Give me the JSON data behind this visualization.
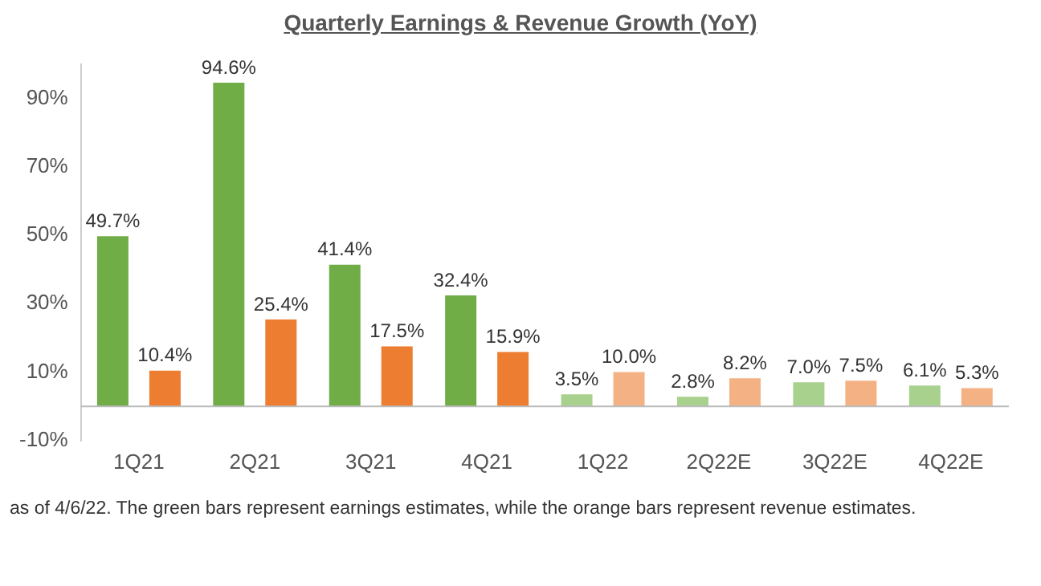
{
  "chart_data": {
    "type": "bar",
    "title": "Quarterly Earnings & Revenue Growth (YoY)",
    "categories": [
      "1Q21",
      "2Q21",
      "3Q21",
      "4Q21",
      "1Q22",
      "2Q22E",
      "3Q22E",
      "4Q22E"
    ],
    "series": [
      {
        "colors": [
          "#70ad47",
          "#70ad47",
          "#70ad47",
          "#70ad47",
          "#a9d18e",
          "#a9d18e",
          "#a9d18e",
          "#a9d18e"
        ],
        "values": [
          49.7,
          94.6,
          41.4,
          32.4,
          3.5,
          2.8,
          7.0,
          6.1
        ],
        "value_labels": [
          "49.7%",
          "94.6%",
          "41.4%",
          "32.4%",
          "3.5%",
          "2.8%",
          "7.0%",
          "6.1%"
        ]
      },
      {
        "colors": [
          "#ed7d31",
          "#ed7d31",
          "#ed7d31",
          "#ed7d31",
          "#f4b183",
          "#f4b183",
          "#f4b183",
          "#f4b183"
        ],
        "values": [
          10.4,
          25.4,
          17.5,
          15.9,
          10.0,
          8.2,
          7.5,
          5.3
        ],
        "value_labels": [
          "10.4%",
          "25.4%",
          "17.5%",
          "15.9%",
          "10.0%",
          "8.2%",
          "7.5%",
          "5.3%"
        ]
      }
    ],
    "ylim": [
      -10,
      100
    ],
    "yticks": [
      {
        "value": -10,
        "label": "-10%"
      },
      {
        "value": 10,
        "label": "10%"
      },
      {
        "value": 30,
        "label": "30%"
      },
      {
        "value": 50,
        "label": "50%"
      },
      {
        "value": 70,
        "label": "70%"
      },
      {
        "value": 90,
        "label": "90%"
      }
    ],
    "grid": false,
    "legend": false,
    "annotations": [
      "as of 4/6/22. The green bars represent earnings estimates, while the orange bars represent revenue estimates."
    ]
  }
}
